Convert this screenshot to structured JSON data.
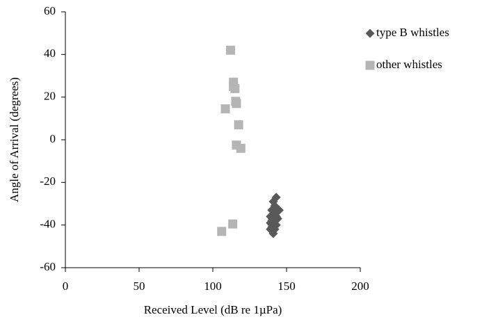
{
  "chart_data": {
    "type": "scatter",
    "x_label": "Received Level (dB re 1µPa)",
    "y_label": "Angle of Arrival (degrees)",
    "xlim": [
      0,
      200
    ],
    "xticks": [
      0,
      50,
      100,
      150,
      200
    ],
    "ylim": [
      -60,
      60
    ],
    "yticks": [
      -60,
      -40,
      -20,
      0,
      20,
      40,
      60
    ],
    "grid": false,
    "legend": "right",
    "series": [
      {
        "name": "type B whistles",
        "color": "#595959",
        "marker": "diamond",
        "x": [
          143,
          141,
          142,
          144,
          145,
          140,
          142,
          139,
          143,
          141,
          140,
          142,
          139,
          141,
          143,
          140,
          142,
          141,
          139,
          144
        ],
        "y": [
          -27,
          -29,
          -31,
          -33,
          -33,
          -33,
          -35,
          -36,
          -36,
          -37,
          -38,
          -38,
          -39,
          -40,
          -40,
          -41,
          -42,
          -44,
          -42,
          -37
        ]
      },
      {
        "name": "other whistles",
        "color": "#b5b5b5",
        "marker": "square",
        "x": [
          112,
          114,
          114,
          115,
          108.5,
          115.5,
          116,
          117.5,
          116,
          119,
          106,
          113.5
        ],
        "y": [
          42,
          27,
          25,
          24,
          14.5,
          18,
          17,
          7,
          -2.5,
          -4,
          -43,
          -39.5
        ]
      }
    ]
  }
}
